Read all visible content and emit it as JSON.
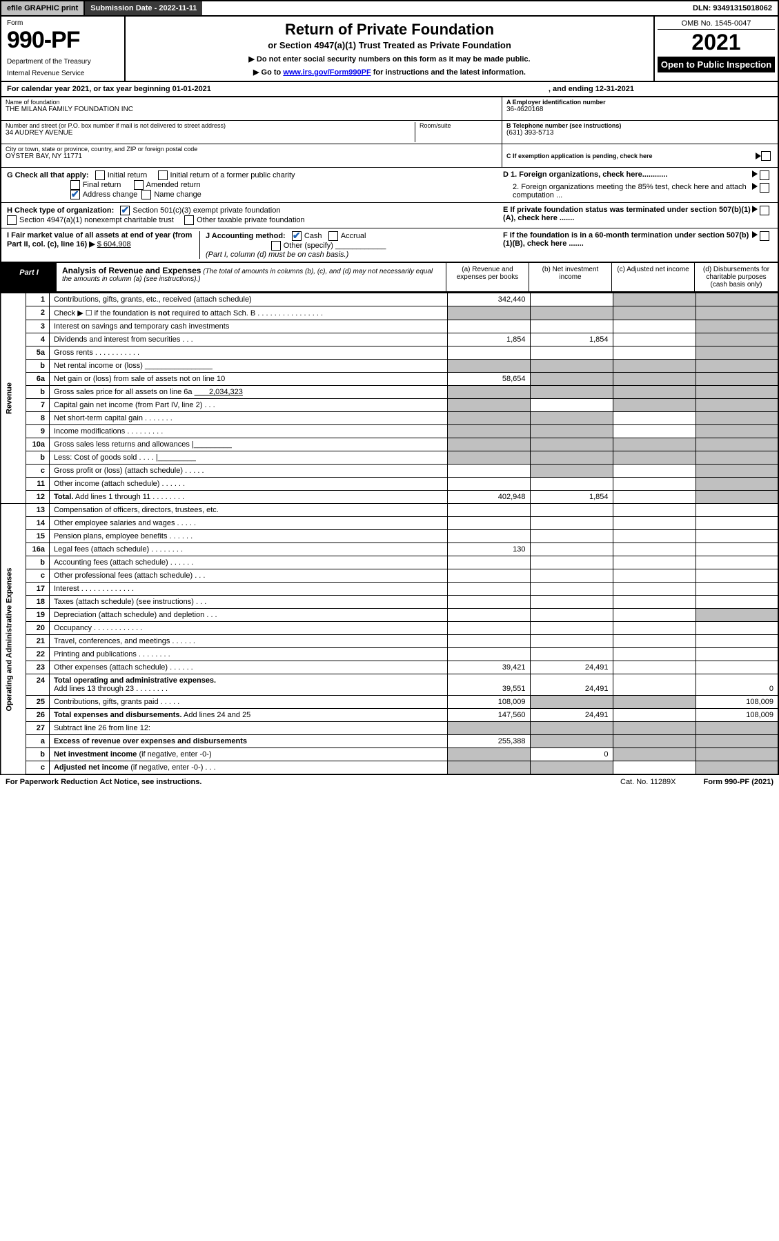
{
  "topbar": {
    "efile": "efile GRAPHIC print",
    "submission_label": "Submission Date - ",
    "submission_date": "2022-11-11",
    "dln_label": "DLN: ",
    "dln": "93491315018062"
  },
  "header": {
    "form_label": "Form",
    "form_num": "990-PF",
    "dept": "Department of the Treasury",
    "irs": "Internal Revenue Service",
    "title": "Return of Private Foundation",
    "subtitle": "or Section 4947(a)(1) Trust Treated as Private Foundation",
    "note1": "▶ Do not enter social security numbers on this form as it may be made public.",
    "note2_pre": "▶ Go to ",
    "note2_link": "www.irs.gov/Form990PF",
    "note2_post": " for instructions and the latest information.",
    "omb": "OMB No. 1545-0047",
    "year": "2021",
    "open": "Open to Public Inspection"
  },
  "calyear": {
    "text": "For calendar year 2021, or tax year beginning 01-01-2021",
    "ending": ", and ending 12-31-2021"
  },
  "info": {
    "name_label": "Name of foundation",
    "name": "THE MILANA FAMILY FOUNDATION INC",
    "addr_label": "Number and street (or P.O. box number if mail is not delivered to street address)",
    "addr": "34 AUDREY AVENUE",
    "room_label": "Room/suite",
    "city_label": "City or town, state or province, country, and ZIP or foreign postal code",
    "city": "OYSTER BAY, NY  11771",
    "ein_label": "A Employer identification number",
    "ein": "36-4620168",
    "tel_label": "B Telephone number (see instructions)",
    "tel": "(631) 393-5713",
    "c_label": "C If exemption application is pending, check here"
  },
  "g": {
    "label": "G Check all that apply:",
    "initial": "Initial return",
    "final": "Final return",
    "address": "Address change",
    "initial_former": "Initial return of a former public charity",
    "amended": "Amended return",
    "name_change": "Name change"
  },
  "d": {
    "d1": "D 1. Foreign organizations, check here............",
    "d2": "2. Foreign organizations meeting the 85% test, check here and attach computation ..."
  },
  "h": {
    "label": "H Check type of organization:",
    "s501": "Section 501(c)(3) exempt private foundation",
    "s4947": "Section 4947(a)(1) nonexempt charitable trust",
    "other": "Other taxable private foundation"
  },
  "e": {
    "label": "E If private foundation status was terminated under section 507(b)(1)(A), check here ......."
  },
  "i": {
    "label": "I Fair market value of all assets at end of year (from Part II, col. (c), line 16) ▶",
    "val": "$  604,908"
  },
  "j": {
    "label": "J Accounting method:",
    "cash": "Cash",
    "accrual": "Accrual",
    "other": "Other (specify)",
    "note": "(Part I, column (d) must be on cash basis.)"
  },
  "f": {
    "label": "F If the foundation is in a 60-month termination under section 507(b)(1)(B), check here ......."
  },
  "part1": {
    "label": "Part I",
    "title": "Analysis of Revenue and Expenses",
    "title_note": "(The total of amounts in columns (b), (c), and (d) may not necessarily equal the amounts in column (a) (see instructions).)",
    "col_a": "(a) Revenue and expenses per books",
    "col_b": "(b) Net investment income",
    "col_c": "(c) Adjusted net income",
    "col_d": "(d) Disbursements for charitable purposes (cash basis only)"
  },
  "sidelabels": {
    "revenue": "Revenue",
    "expenses": "Operating and Administrative Expenses"
  },
  "rows": [
    {
      "n": "1",
      "d": "",
      "a": "342,440",
      "b": "",
      "c": "",
      "cgrey": true,
      "dgrey": true
    },
    {
      "n": "2",
      "d": "",
      "a": "",
      "b": "",
      "c": "",
      "agrey": true,
      "bgrey": true,
      "cgrey": true,
      "dgrey": true
    },
    {
      "n": "3",
      "d": "",
      "a": "",
      "b": "",
      "c": "",
      "dgrey": true
    },
    {
      "n": "4",
      "d": "",
      "a": "1,854",
      "b": "1,854",
      "c": "",
      "dgrey": true
    },
    {
      "n": "5a",
      "d": "",
      "a": "",
      "b": "",
      "c": "",
      "dgrey": true
    },
    {
      "n": "b",
      "d": "",
      "a": "",
      "b": "",
      "c": "",
      "agrey": true,
      "bgrey": true,
      "cgrey": true,
      "dgrey": true
    },
    {
      "n": "6a",
      "d": "",
      "a": "58,654",
      "b": "",
      "c": "",
      "bgrey": true,
      "cgrey": true,
      "dgrey": true
    },
    {
      "n": "b",
      "d": "",
      "a": "",
      "b": "",
      "c": "",
      "agrey": true,
      "bgrey": true,
      "cgrey": true,
      "dgrey": true
    },
    {
      "n": "7",
      "d": "",
      "a": "",
      "b": "",
      "c": "",
      "agrey": true,
      "cgrey": true,
      "dgrey": true
    },
    {
      "n": "8",
      "d": "",
      "a": "",
      "b": "",
      "c": "",
      "agrey": true,
      "bgrey": true,
      "dgrey": true
    },
    {
      "n": "9",
      "d": "",
      "a": "",
      "b": "",
      "c": "",
      "agrey": true,
      "bgrey": true,
      "dgrey": true
    },
    {
      "n": "10a",
      "d": "",
      "a": "",
      "b": "",
      "c": "",
      "agrey": true,
      "bgrey": true,
      "cgrey": true,
      "dgrey": true
    },
    {
      "n": "b",
      "d": "",
      "a": "",
      "b": "",
      "c": "",
      "agrey": true,
      "bgrey": true,
      "cgrey": true,
      "dgrey": true
    },
    {
      "n": "c",
      "d": "",
      "a": "",
      "b": "",
      "c": "",
      "bgrey": true,
      "dgrey": true
    },
    {
      "n": "11",
      "d": "",
      "a": "",
      "b": "",
      "c": "",
      "dgrey": true
    },
    {
      "n": "12",
      "d": "",
      "a": "402,948",
      "b": "1,854",
      "c": "",
      "bold": true,
      "dgrey": true
    },
    {
      "n": "13",
      "d": "",
      "a": "",
      "b": "",
      "c": ""
    },
    {
      "n": "14",
      "d": "",
      "a": "",
      "b": "",
      "c": ""
    },
    {
      "n": "15",
      "d": "",
      "a": "",
      "b": "",
      "c": ""
    },
    {
      "n": "16a",
      "d": "",
      "a": "130",
      "b": "",
      "c": ""
    },
    {
      "n": "b",
      "d": "",
      "a": "",
      "b": "",
      "c": ""
    },
    {
      "n": "c",
      "d": "",
      "a": "",
      "b": "",
      "c": ""
    },
    {
      "n": "17",
      "d": "",
      "a": "",
      "b": "",
      "c": ""
    },
    {
      "n": "18",
      "d": "",
      "a": "",
      "b": "",
      "c": ""
    },
    {
      "n": "19",
      "d": "",
      "a": "",
      "b": "",
      "c": "",
      "dgrey": true
    },
    {
      "n": "20",
      "d": "",
      "a": "",
      "b": "",
      "c": ""
    },
    {
      "n": "21",
      "d": "",
      "a": "",
      "b": "",
      "c": ""
    },
    {
      "n": "22",
      "d": "",
      "a": "",
      "b": "",
      "c": ""
    },
    {
      "n": "23",
      "d": "",
      "a": "39,421",
      "b": "24,491",
      "c": ""
    },
    {
      "n": "24",
      "d": "0",
      "a": "39,551",
      "b": "24,491",
      "c": "",
      "bold": true
    },
    {
      "n": "25",
      "d": "108,009",
      "a": "108,009",
      "b": "",
      "c": "",
      "bgrey": true,
      "cgrey": true
    },
    {
      "n": "26",
      "d": "108,009",
      "a": "147,560",
      "b": "24,491",
      "c": "",
      "bold": true
    },
    {
      "n": "27",
      "d": "",
      "a": "",
      "b": "",
      "c": "",
      "agrey": true,
      "bgrey": true,
      "cgrey": true,
      "dgrey": true
    },
    {
      "n": "a",
      "d": "",
      "a": "255,388",
      "b": "",
      "c": "",
      "bold": true,
      "bgrey": true,
      "cgrey": true,
      "dgrey": true
    },
    {
      "n": "b",
      "d": "",
      "a": "",
      "b": "0",
      "c": "",
      "bold": true,
      "agrey": true,
      "cgrey": true,
      "dgrey": true
    },
    {
      "n": "c",
      "d": "",
      "a": "",
      "b": "",
      "c": "",
      "bold": true,
      "agrey": true,
      "bgrey": true,
      "dgrey": true
    }
  ],
  "footer": {
    "pra": "For Paperwork Reduction Act Notice, see instructions.",
    "cat": "Cat. No. 11289X",
    "form": "Form 990-PF (2021)"
  }
}
